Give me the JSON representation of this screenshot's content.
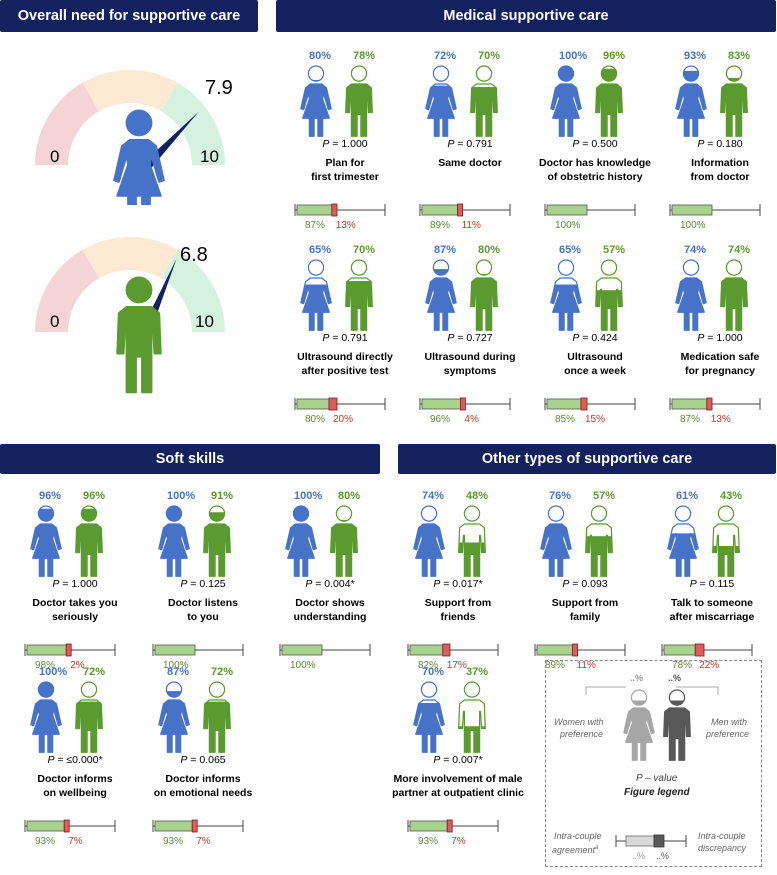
{
  "headers": {
    "overall": "Overall need for supportive care",
    "medical": "Medical supportive care",
    "soft": "Soft skills",
    "other": "Other types of supportive care"
  },
  "gauges": [
    {
      "value": "7.9",
      "min": "0",
      "max": "10",
      "needle": 0.79,
      "figure": "woman"
    },
    {
      "value": "6.8",
      "min": "0",
      "max": "10",
      "needle": 0.68,
      "figure": "man"
    }
  ],
  "colors": {
    "women": "#4673c7",
    "men": "#5b9a2e",
    "header": "#13215f",
    "agreement": "#a9d18e",
    "discrepancy": "#e05c5c"
  },
  "items": [
    {
      "women": "80%",
      "men": "78%",
      "women_fill": 0.8,
      "men_fill": 0.78,
      "p": "1.000",
      "title1": "Plan for",
      "title2": "first trimester",
      "agree": "87%",
      "disc": "13%",
      "agree_val": 0.87
    },
    {
      "women": "72%",
      "men": "70%",
      "women_fill": 0.72,
      "men_fill": 0.7,
      "p": "0.791",
      "title1": "Same doctor",
      "title2": "",
      "agree": "89%",
      "disc": "11%",
      "agree_val": 0.89
    },
    {
      "women": "100%",
      "men": "96%",
      "women_fill": 1.0,
      "men_fill": 0.96,
      "p": "0.500",
      "title1": "Doctor has knowledge",
      "title2": "of obstetric history",
      "agree": "100%",
      "disc": "",
      "agree_val": 1.0
    },
    {
      "women": "93%",
      "men": "83%",
      "women_fill": 0.93,
      "men_fill": 0.83,
      "p": "0.180",
      "title1": "Information",
      "title2": "from doctor",
      "agree": "100%",
      "disc": "",
      "agree_val": 1.0
    },
    {
      "women": "65%",
      "men": "70%",
      "women_fill": 0.65,
      "men_fill": 0.7,
      "p": "0.791",
      "title1": "Ultrasound directly",
      "title2": "after positive test",
      "agree": "80%",
      "disc": "20%",
      "agree_val": 0.8
    },
    {
      "women": "87%",
      "men": "80%",
      "women_fill": 0.87,
      "men_fill": 0.8,
      "p": "0.727",
      "title1": "Ultrasound during",
      "title2": "symptoms",
      "agree": "96%",
      "disc": "4%",
      "agree_val": 0.96
    },
    {
      "women": "65%",
      "men": "57%",
      "women_fill": 0.65,
      "men_fill": 0.57,
      "p": "0.424",
      "title1": "Ultrasound",
      "title2": "once a week",
      "agree": "85%",
      "disc": "15%",
      "agree_val": 0.85
    },
    {
      "women": "74%",
      "men": "74%",
      "women_fill": 0.74,
      "men_fill": 0.74,
      "p": "1.000",
      "title1": "Medication safe",
      "title2": "for pregnancy",
      "agree": "87%",
      "disc": "13%",
      "agree_val": 0.87
    },
    {
      "women": "96%",
      "men": "96%",
      "women_fill": 0.96,
      "men_fill": 0.96,
      "p": "1.000",
      "title1": "Doctor takes you",
      "title2": "seriously",
      "agree": "98%",
      "disc": "2%",
      "agree_val": 0.98
    },
    {
      "women": "100%",
      "men": "91%",
      "women_fill": 1.0,
      "men_fill": 0.91,
      "p": "0.125",
      "title1": "Doctor listens",
      "title2": "to you",
      "agree": "100%",
      "disc": "",
      "agree_val": 1.0
    },
    {
      "women": "100%",
      "men": "80%",
      "women_fill": 1.0,
      "men_fill": 0.8,
      "p": "0.004*",
      "title1": "Doctor shows",
      "title2": "understanding",
      "agree": "100%",
      "disc": "",
      "agree_val": 1.0
    },
    {
      "women": "74%",
      "men": "48%",
      "women_fill": 0.74,
      "men_fill": 0.48,
      "p": "0.017*",
      "title1": "Support from",
      "title2": "friends",
      "agree": "82%",
      "disc": "17%",
      "agree_val": 0.82
    },
    {
      "women": "76%",
      "men": "57%",
      "women_fill": 0.76,
      "men_fill": 0.57,
      "p": "0.093",
      "title1": "Support from",
      "title2": "family",
      "agree": "89%",
      "disc": "11%",
      "agree_val": 0.89
    },
    {
      "women": "61%",
      "men": "43%",
      "women_fill": 0.61,
      "men_fill": 0.43,
      "p": "0.115",
      "title1": "Talk to someone",
      "title2": "after miscarriage",
      "agree": "78%",
      "disc": "22%",
      "agree_val": 0.78
    },
    {
      "women": "100%",
      "men": "72%",
      "women_fill": 1.0,
      "men_fill": 0.72,
      "p": "≤0.000*",
      "title1": "Doctor informs",
      "title2": "on wellbeing",
      "agree": "93%",
      "disc": "7%",
      "agree_val": 0.93
    },
    {
      "women": "87%",
      "men": "72%",
      "women_fill": 0.87,
      "men_fill": 0.72,
      "p": "0.065",
      "title1": "Doctor informs",
      "title2": "on emotional needs",
      "agree": "93%",
      "disc": "7%",
      "agree_val": 0.93
    },
    {
      "women": "70%",
      "men": "37%",
      "women_fill": 0.7,
      "men_fill": 0.37,
      "p": "0.007*",
      "title1": "More involvement of male",
      "title2": "partner at outpatient clinic",
      "agree": "93%",
      "disc": "7%",
      "agree_val": 0.93
    }
  ],
  "p_prefix": "P",
  "legend": {
    "women_pct": "..%",
    "men_pct": "..%",
    "women_label1": "Women with",
    "women_label2": "preference",
    "men_label1": "Men with",
    "men_label2": "preference",
    "p_label": "P – value",
    "title": "Figure legend",
    "agree_label1": "Intra-couple",
    "agree_label2": "agreement",
    "agree_sup": "a",
    "disc_label1": "Intra-couple",
    "disc_label2": "discrepancy",
    "box_pct1": "..%",
    "box_pct2": "..%"
  }
}
